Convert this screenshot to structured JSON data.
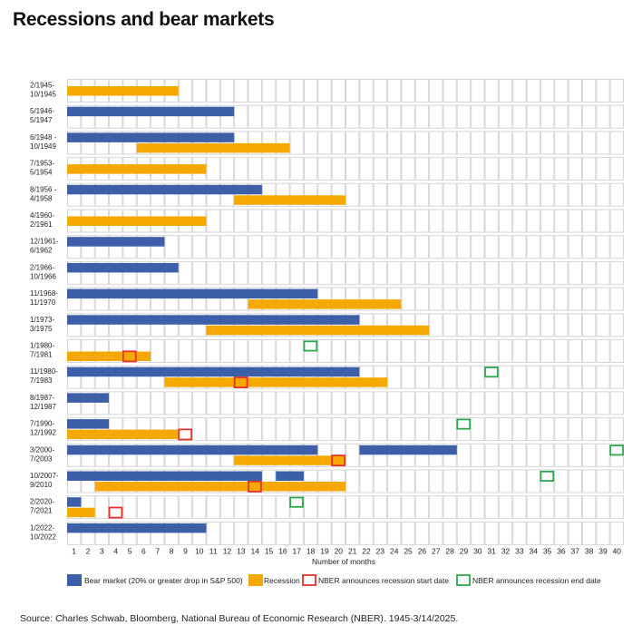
{
  "title": "Recessions and bear markets",
  "source": "Source: Charles Schwab, Bloomberg, National Bureau of Economic Research (NBER). 1945-3/14/2025.",
  "colors": {
    "bear": "#3D5FA8",
    "recession": "#F5A800",
    "start": "#E8312A",
    "end": "#2EA84E",
    "grid": "#D6D6D6"
  },
  "chart_data": {
    "type": "bar",
    "orientation": "horizontal",
    "xlabel": "Number of months",
    "xlim": [
      0,
      40
    ],
    "x_ticks": [
      1,
      2,
      3,
      4,
      5,
      6,
      7,
      8,
      9,
      10,
      11,
      12,
      13,
      14,
      15,
      16,
      17,
      18,
      19,
      20,
      21,
      22,
      23,
      24,
      25,
      26,
      27,
      28,
      29,
      30,
      31,
      32,
      33,
      34,
      35,
      36,
      37,
      38,
      39,
      40
    ],
    "grid": true,
    "legend_position": "bottom",
    "legend": [
      {
        "key": "bear",
        "label": "Bear market (20% or greater drop in S&P 500)"
      },
      {
        "key": "recession",
        "label": "Recession"
      },
      {
        "key": "start",
        "label": "NBER announces recession start date"
      },
      {
        "key": "end",
        "label": "NBER announces recession end date"
      }
    ],
    "rows": [
      {
        "label1": "2/1945-",
        "label2": "10/1945",
        "bear": [],
        "recession": [
          [
            0,
            8
          ]
        ],
        "start": null,
        "end": null
      },
      {
        "label1": "5/1946-",
        "label2": "5/1947",
        "bear": [
          [
            0,
            12
          ]
        ],
        "recession": [],
        "start": null,
        "end": null
      },
      {
        "label1": "6/1948 -",
        "label2": "10/1949",
        "bear": [
          [
            0,
            12
          ]
        ],
        "recession": [
          [
            5,
            16
          ]
        ],
        "start": null,
        "end": null
      },
      {
        "label1": "7/1953-",
        "label2": "5/1954",
        "bear": [],
        "recession": [
          [
            0,
            10
          ]
        ],
        "start": null,
        "end": null
      },
      {
        "label1": "8/1956 -",
        "label2": "4/1958",
        "bear": [
          [
            0,
            14
          ]
        ],
        "recession": [
          [
            12,
            20
          ]
        ],
        "start": null,
        "end": null
      },
      {
        "label1": "4/1960-",
        "label2": "2/1961",
        "bear": [],
        "recession": [
          [
            0,
            10
          ]
        ],
        "start": null,
        "end": null
      },
      {
        "label1": "12/1961-",
        "label2": "6/1962",
        "bear": [
          [
            0,
            7
          ]
        ],
        "recession": [],
        "start": null,
        "end": null
      },
      {
        "label1": "2/1966-",
        "label2": "10/1966",
        "bear": [
          [
            0,
            8
          ]
        ],
        "recession": [],
        "start": null,
        "end": null
      },
      {
        "label1": "11/1968-",
        "label2": "11/1970",
        "bear": [
          [
            0,
            18
          ]
        ],
        "recession": [
          [
            13,
            24
          ]
        ],
        "start": null,
        "end": null
      },
      {
        "label1": "1/1973-",
        "label2": "3/1975",
        "bear": [
          [
            0,
            21
          ]
        ],
        "recession": [
          [
            10,
            26
          ]
        ],
        "start": null,
        "end": null
      },
      {
        "label1": "1/1980-",
        "label2": "7/1981",
        "bear": [],
        "recession": [
          [
            0,
            6
          ]
        ],
        "start": 5,
        "end": 18
      },
      {
        "label1": "11/1980-",
        "label2": "7/1983",
        "bear": [
          [
            0,
            21
          ]
        ],
        "recession": [
          [
            7,
            23
          ]
        ],
        "start": 13,
        "end": 31
      },
      {
        "label1": "8/1987-",
        "label2": "12/1987",
        "bear": [
          [
            0,
            3
          ]
        ],
        "recession": [],
        "start": null,
        "end": null
      },
      {
        "label1": "7/1990-",
        "label2": "12/1992",
        "bear": [
          [
            0,
            3
          ]
        ],
        "recession": [
          [
            0,
            8
          ]
        ],
        "start": 9,
        "end": 29
      },
      {
        "label1": "3/2000-",
        "label2": "7/2003",
        "bear": [
          [
            0,
            18
          ],
          [
            21,
            28
          ]
        ],
        "recession": [
          [
            12,
            20
          ]
        ],
        "start": 20,
        "end": 40
      },
      {
        "label1": "10/2007-",
        "label2": "9/2010",
        "bear": [
          [
            0,
            14
          ],
          [
            15,
            17
          ]
        ],
        "recession": [
          [
            2,
            20
          ]
        ],
        "start": 14,
        "end": 35
      },
      {
        "label1": "2/2020-",
        "label2": "7/2021",
        "bear": [
          [
            0,
            1
          ]
        ],
        "recession": [
          [
            0,
            2
          ]
        ],
        "start": 4,
        "end": 17
      },
      {
        "label1": "1/2022-",
        "label2": "10/2022",
        "bear": [
          [
            0,
            10
          ]
        ],
        "recession": [],
        "start": null,
        "end": null
      }
    ]
  }
}
